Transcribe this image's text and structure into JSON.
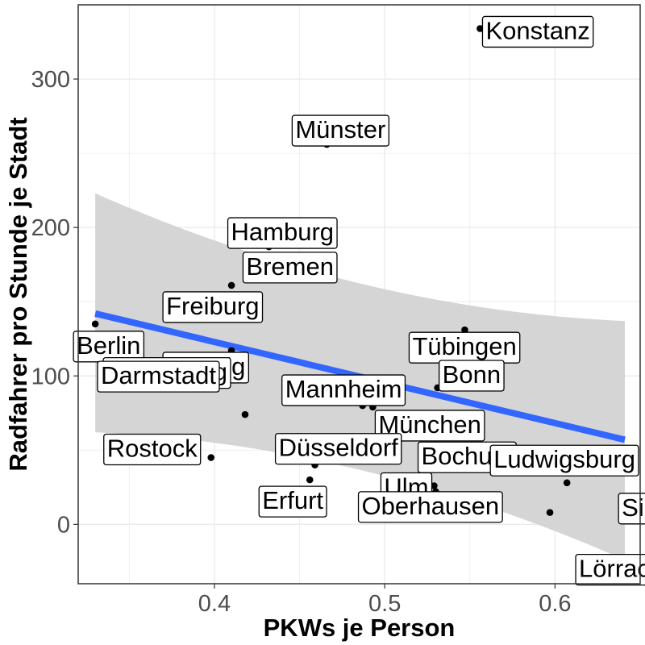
{
  "chart_data": {
    "type": "scatter",
    "xlabel": "PKWs je Person",
    "ylabel": "Radfahrer pro Stunde je Stadt",
    "xlim": [
      0.32,
      0.65
    ],
    "ylim": [
      -40,
      350
    ],
    "x_ticks": [
      0.4,
      0.5,
      0.6
    ],
    "y_ticks": [
      0,
      100,
      200,
      300
    ],
    "x_tick_labels": [
      "0.4",
      "0.5",
      "0.6"
    ],
    "y_tick_labels": [
      "0",
      "100",
      "200",
      "300"
    ],
    "grid": true,
    "points": [
      {
        "name": "Konstanz",
        "x": 0.556,
        "y": 334
      },
      {
        "name": "Münster",
        "x": 0.466,
        "y": 256
      },
      {
        "name": "Hamburg",
        "x": 0.432,
        "y": 187
      },
      {
        "name": "Bremen",
        "x": 0.422,
        "y": 167
      },
      {
        "name": "Freiburg",
        "x": 0.41,
        "y": 161
      },
      {
        "name": "Berlin",
        "x": 0.33,
        "y": 135
      },
      {
        "name": "Leipzig",
        "x": 0.41,
        "y": 117
      },
      {
        "name": "Tübingen",
        "x": 0.547,
        "y": 131
      },
      {
        "name": "Heidelberg",
        "x": 0.347,
        "y": 96
      },
      {
        "name": "Bonn",
        "x": 0.531,
        "y": 92
      },
      {
        "name": "Mannheim",
        "x": 0.487,
        "y": 80
      },
      {
        "name": "München",
        "x": 0.493,
        "y": 79
      },
      {
        "name": "Darmstadt",
        "x": 0.418,
        "y": 74
      },
      {
        "name": "Rostock",
        "x": 0.398,
        "y": 45
      },
      {
        "name": "Düsseldorf",
        "x": 0.459,
        "y": 40
      },
      {
        "name": "Bochum",
        "x": 0.539,
        "y": 37
      },
      {
        "name": "Ludwigsburg",
        "x": 0.616,
        "y": 37
      },
      {
        "name": "Erfurt",
        "x": 0.456,
        "y": 30
      },
      {
        "name": "Ulm",
        "x": 0.529,
        "y": 26
      },
      {
        "name": "Oberhausen",
        "x": 0.53,
        "y": 22
      },
      {
        "name": "Siegen",
        "x": 0.607,
        "y": 28
      },
      {
        "name": "Lörrach",
        "x": 0.597,
        "y": 8
      }
    ],
    "trend": {
      "x": [
        0.33,
        0.641
      ],
      "y": [
        142,
        57
      ]
    },
    "confidence_band": {
      "x": [
        0.33,
        0.641
      ],
      "upper": [
        223,
        137
      ],
      "lower": [
        62,
        -24
      ]
    },
    "colors": {
      "trend": "#3366ff",
      "band": "#d3d3d3",
      "point": "#000000",
      "grid": "#ebebeb",
      "axis": "#333333"
    }
  }
}
